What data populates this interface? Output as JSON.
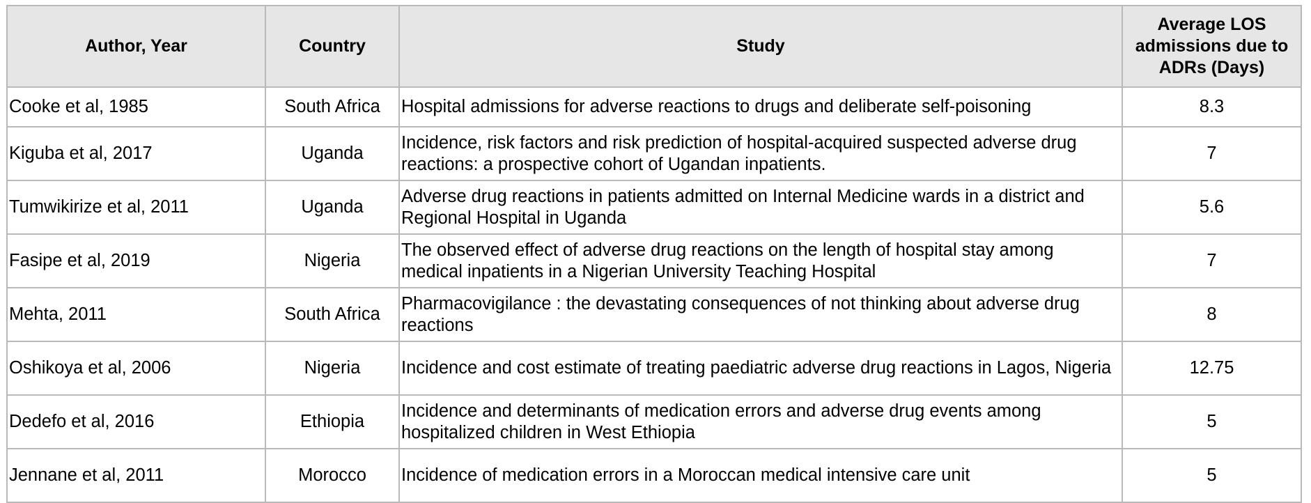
{
  "table": {
    "headers": {
      "author": "Author, Year",
      "country": "Country",
      "study": "Study",
      "los_line1": "Average LOS",
      "los_line2": "admissions due to",
      "los_line3": "ADRs (Days)"
    },
    "rows": [
      {
        "author": "Cooke et al, 1985",
        "country": "South Africa",
        "study": "Hospital admissions for adverse reactions to drugs and deliberate self-poisoning",
        "los": "8.3"
      },
      {
        "author": "Kiguba et al, 2017",
        "country": "Uganda",
        "study": "Incidence, risk factors and risk prediction of hospital-acquired suspected adverse drug reactions: a prospective cohort of Ugandan inpatients.",
        "los": "7"
      },
      {
        "author": "Tumwikirize et al, 2011",
        "country": "Uganda",
        "study": "Adverse drug reactions in patients admitted on Internal Medicine wards in a district and Regional Hospital in Uganda",
        "los": "5.6"
      },
      {
        "author": "Fasipe et al, 2019",
        "country": "Nigeria",
        "study": "The observed effect of adverse drug reactions on the length of hospital stay among medical inpatients in a Nigerian University Teaching Hospital",
        "los": "7"
      },
      {
        "author": "Mehta, 2011",
        "country": "South Africa",
        "study": "Pharmacovigilance : the devastating consequences of not thinking about adverse drug reactions",
        "los": "8"
      },
      {
        "author": "Oshikoya et al, 2006",
        "country": "Nigeria",
        "study": "Incidence and cost estimate of treating paediatric adverse drug reactions in Lagos, Nigeria",
        "los": "12.75"
      },
      {
        "author": "Dedefo et al, 2016",
        "country": "Ethiopia",
        "study": "Incidence and determinants of medication errors and adverse drug events among hospitalized children in West Ethiopia",
        "los": "5"
      },
      {
        "author": "Jennane et al, 2011",
        "country": "Morocco",
        "study": "Incidence of medication errors in a Moroccan medical intensive care unit",
        "los": "5"
      }
    ]
  }
}
